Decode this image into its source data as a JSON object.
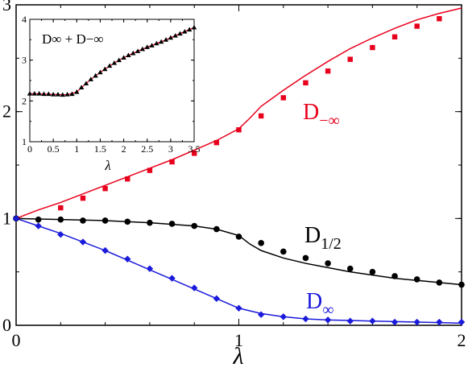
{
  "chart_data": [
    {
      "type": "line",
      "title": "",
      "xlabel": "λ",
      "ylabel": "",
      "xlim": [
        0,
        2
      ],
      "ylim": [
        0,
        3
      ],
      "x_ticks": [
        "0",
        "1",
        "2"
      ],
      "y_ticks": [
        "0",
        "1",
        "2",
        "3"
      ],
      "grid": false,
      "series": [
        {
          "name": "D−∞",
          "color": "#e8001c",
          "marker": "square",
          "line_x": [
            0,
            0.1,
            0.2,
            0.3,
            0.4,
            0.5,
            0.6,
            0.7,
            0.8,
            0.9,
            1.0,
            1.05,
            1.1,
            1.2,
            1.3,
            1.4,
            1.5,
            1.6,
            1.7,
            1.8,
            1.9,
            2.0
          ],
          "line_y": [
            1.0,
            1.08,
            1.15,
            1.23,
            1.31,
            1.39,
            1.47,
            1.55,
            1.64,
            1.73,
            1.84,
            1.94,
            2.05,
            2.2,
            2.34,
            2.47,
            2.59,
            2.69,
            2.78,
            2.86,
            2.92,
            2.97
          ],
          "points_x": [
            0.2,
            0.3,
            0.4,
            0.5,
            0.6,
            0.7,
            0.8,
            0.9,
            1.0,
            1.1,
            1.2,
            1.3,
            1.4,
            1.5,
            1.6,
            1.7,
            1.8,
            1.9
          ],
          "points_y": [
            1.1,
            1.19,
            1.28,
            1.37,
            1.45,
            1.53,
            1.61,
            1.71,
            1.83,
            1.96,
            2.13,
            2.27,
            2.38,
            2.49,
            2.6,
            2.7,
            2.8,
            2.87
          ]
        },
        {
          "name": "D1/2",
          "color": "#000000",
          "marker": "circle",
          "line_x": [
            0,
            0.2,
            0.4,
            0.6,
            0.8,
            0.9,
            1.0,
            1.05,
            1.1,
            1.2,
            1.3,
            1.4,
            1.5,
            1.6,
            1.7,
            1.8,
            1.9,
            2.0
          ],
          "line_y": [
            1.0,
            0.99,
            0.98,
            0.96,
            0.93,
            0.9,
            0.84,
            0.76,
            0.7,
            0.63,
            0.58,
            0.54,
            0.5,
            0.47,
            0.44,
            0.42,
            0.4,
            0.38
          ],
          "points_x": [
            0,
            0.1,
            0.2,
            0.3,
            0.4,
            0.5,
            0.6,
            0.7,
            0.8,
            0.9,
            1.0,
            1.1,
            1.2,
            1.3,
            1.4,
            1.5,
            1.6,
            1.7,
            1.8,
            1.9,
            2.0
          ],
          "points_y": [
            1.0,
            0.99,
            0.99,
            0.98,
            0.98,
            0.97,
            0.96,
            0.95,
            0.93,
            0.9,
            0.83,
            0.77,
            0.69,
            0.63,
            0.58,
            0.53,
            0.5,
            0.46,
            0.43,
            0.4,
            0.38
          ]
        },
        {
          "name": "D∞",
          "color": "#1a1adc",
          "marker": "diamond",
          "line_x": [
            0,
            0.1,
            0.2,
            0.3,
            0.4,
            0.5,
            0.6,
            0.7,
            0.8,
            0.9,
            1.0,
            1.1,
            1.2,
            1.3,
            1.4,
            1.5,
            1.6,
            1.7,
            1.8,
            1.9,
            2.0
          ],
          "line_y": [
            1.0,
            0.93,
            0.86,
            0.78,
            0.7,
            0.61,
            0.52,
            0.43,
            0.34,
            0.25,
            0.16,
            0.11,
            0.08,
            0.06,
            0.05,
            0.045,
            0.04,
            0.035,
            0.03,
            0.025,
            0.02
          ],
          "points_x": [
            0,
            0.1,
            0.2,
            0.3,
            0.4,
            0.5,
            0.6,
            0.7,
            0.8,
            0.9,
            1.0,
            1.1,
            1.2,
            1.3,
            1.4,
            1.5,
            1.6,
            1.7,
            1.8,
            1.9,
            2.0
          ],
          "points_y": [
            1.0,
            0.93,
            0.85,
            0.78,
            0.7,
            0.62,
            0.53,
            0.44,
            0.35,
            0.25,
            0.16,
            0.1,
            0.08,
            0.06,
            0.05,
            0.04,
            0.04,
            0.03,
            0.03,
            0.03,
            0.03
          ]
        }
      ]
    },
    {
      "type": "line",
      "title": "",
      "formula": "D∞ + D−∞",
      "xlabel": "λ",
      "ylabel": "",
      "xlim": [
        0,
        3.5
      ],
      "ylim": [
        1,
        4
      ],
      "x_ticks": [
        "0",
        "0.5",
        "1",
        "1.5",
        "2",
        "2.5",
        "3",
        "3.5"
      ],
      "y_ticks": [
        "1",
        "2",
        "3",
        "4"
      ],
      "series": [
        {
          "name": "",
          "color": "#000000",
          "marker": "triangle",
          "line_color": "#e8001c",
          "line_x": [
            0,
            0.5,
            0.8,
            1.0,
            1.2,
            1.4,
            1.6,
            1.8,
            2.0,
            2.2,
            2.4,
            2.6,
            2.8,
            3.0,
            3.2,
            3.4,
            3.5
          ],
          "line_y": [
            2.18,
            2.16,
            2.15,
            2.22,
            2.43,
            2.62,
            2.78,
            2.93,
            3.06,
            3.17,
            3.27,
            3.36,
            3.45,
            3.55,
            3.65,
            3.75,
            3.8
          ],
          "points_x": [
            0,
            0.1,
            0.2,
            0.3,
            0.4,
            0.5,
            0.6,
            0.7,
            0.8,
            0.9,
            1.0,
            1.1,
            1.2,
            1.3,
            1.4,
            1.5,
            1.6,
            1.7,
            1.8,
            1.9,
            2.0,
            2.1,
            2.2,
            2.3,
            2.4,
            2.5,
            2.6,
            2.7,
            2.8,
            2.9,
            3.0,
            3.1,
            3.2,
            3.3,
            3.4,
            3.5
          ],
          "points_y": [
            2.18,
            2.18,
            2.18,
            2.17,
            2.17,
            2.16,
            2.16,
            2.15,
            2.16,
            2.17,
            2.22,
            2.33,
            2.43,
            2.53,
            2.62,
            2.7,
            2.78,
            2.86,
            2.93,
            3.0,
            3.06,
            3.12,
            3.17,
            3.22,
            3.27,
            3.32,
            3.36,
            3.41,
            3.45,
            3.5,
            3.55,
            3.6,
            3.65,
            3.7,
            3.75,
            3.8
          ]
        }
      ]
    }
  ]
}
